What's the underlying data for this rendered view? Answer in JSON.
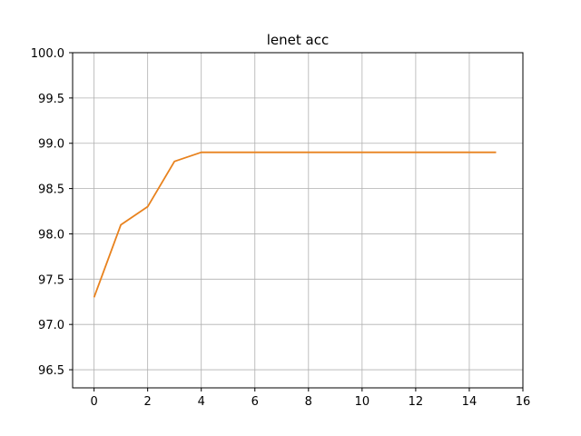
{
  "chart_data": {
    "type": "line",
    "title": "lenet acc",
    "xlabel": "",
    "ylabel": "",
    "xlim": [
      -0.8,
      16
    ],
    "ylim": [
      96.3,
      100.0
    ],
    "x_ticks": [
      0,
      2,
      4,
      6,
      8,
      10,
      12,
      14,
      16
    ],
    "y_ticks": [
      96.5,
      97.0,
      97.5,
      98.0,
      98.5,
      99.0,
      99.5,
      100.0
    ],
    "y_tick_labels": [
      "96.5",
      "97.0",
      "97.5",
      "98.0",
      "98.5",
      "99.0",
      "99.5",
      "100.0"
    ],
    "grid": true,
    "series": [
      {
        "color": "#e8821e",
        "x": [
          0,
          1,
          2,
          3,
          4,
          5,
          6,
          7,
          8,
          9,
          10,
          11,
          12,
          13,
          14,
          15
        ],
        "y": [
          97.3,
          98.1,
          98.3,
          98.8,
          98.9,
          98.9,
          98.9,
          98.9,
          98.9,
          98.9,
          98.9,
          98.9,
          98.9,
          98.9,
          98.9,
          98.9
        ]
      }
    ]
  }
}
